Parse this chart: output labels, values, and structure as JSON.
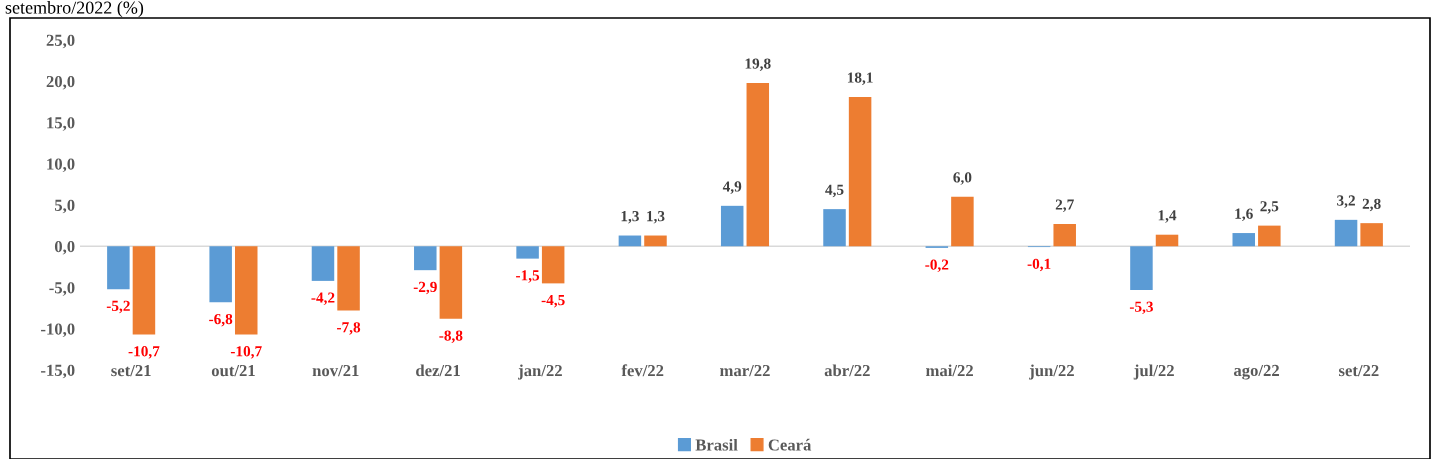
{
  "chart_data": {
    "type": "bar",
    "title": "setembro/2022 (%)",
    "categories": [
      "set/21",
      "out/21",
      "nov/21",
      "dez/21",
      "jan/22",
      "fev/22",
      "mar/22",
      "abr/22",
      "mai/22",
      "jun/22",
      "jul/22",
      "ago/22",
      "set/22"
    ],
    "series": [
      {
        "name": "Brasil",
        "color": "#5b9bd5",
        "values": [
          -5.2,
          -6.8,
          -4.2,
          -2.9,
          -1.5,
          1.3,
          4.9,
          4.5,
          -0.2,
          -0.1,
          -5.3,
          1.6,
          3.2
        ],
        "value_labels": [
          "-5,2",
          "-6,8",
          "-4,2",
          "-2,9",
          "-1,5",
          "1,3",
          "4,9",
          "4,5",
          "-0,2",
          "-0,1",
          "-5,3",
          "1,6",
          "3,2"
        ]
      },
      {
        "name": "Ceará",
        "color": "#ed7d31",
        "values": [
          -10.7,
          -10.7,
          -7.8,
          -8.8,
          -4.5,
          1.3,
          19.8,
          18.1,
          6.0,
          2.7,
          1.4,
          2.5,
          2.8
        ],
        "value_labels": [
          "-10,7",
          "-10,7",
          "-7,8",
          "-8,8",
          "-4,5",
          "1,3",
          "19,8",
          "18,1",
          "6,0",
          "2,7",
          "1,4",
          "2,5",
          "2,8"
        ]
      }
    ],
    "ylim": [
      -15,
      25
    ],
    "yticks": [
      {
        "value": -15,
        "label": "-15,0"
      },
      {
        "value": -10,
        "label": "-10,0"
      },
      {
        "value": -5,
        "label": "-5,0"
      },
      {
        "value": 0,
        "label": "0,0"
      },
      {
        "value": 5,
        "label": "5,0"
      },
      {
        "value": 10,
        "label": "10,0"
      },
      {
        "value": 15,
        "label": "15,0"
      },
      {
        "value": 20,
        "label": "20,0"
      },
      {
        "value": 25,
        "label": "25,0"
      }
    ],
    "ref_lines": [
      {
        "axis": "y",
        "value": 0,
        "color": "#d9d9d9"
      }
    ],
    "grid": false,
    "legend": "bottom"
  }
}
